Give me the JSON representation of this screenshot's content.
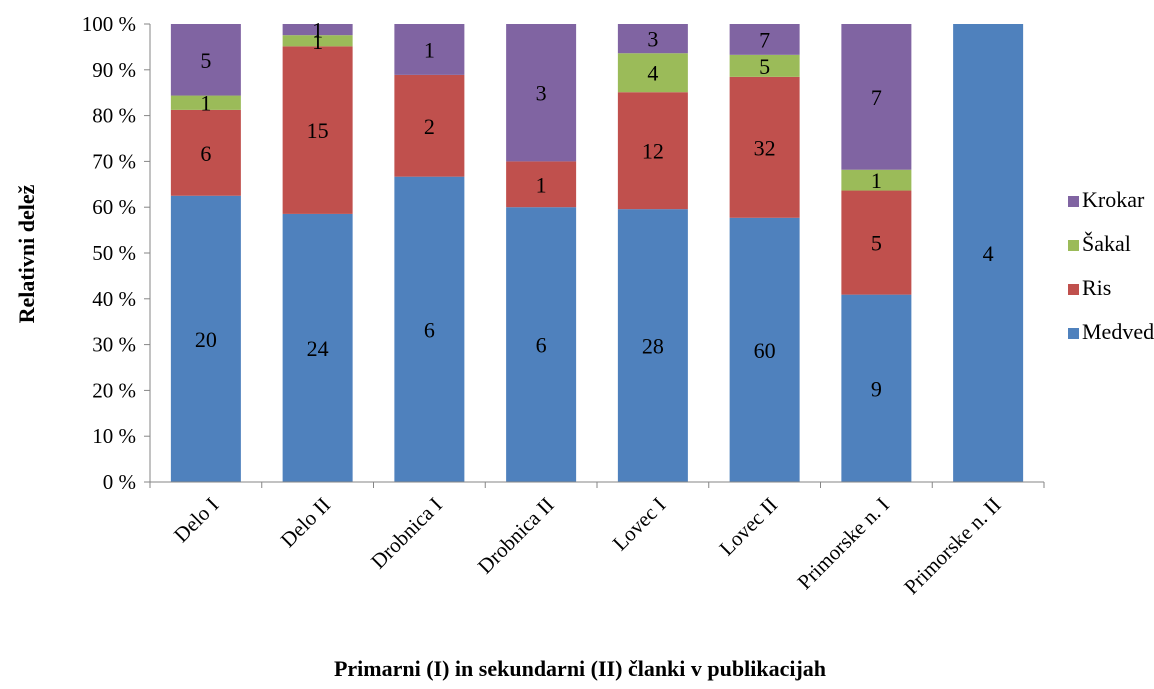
{
  "chart_data": {
    "type": "bar",
    "stacked": true,
    "normalized": true,
    "title": "",
    "xlabel": "Primarni (I) in sekundarni (II) članki v publikacijah",
    "ylabel": "Relativni delež",
    "ylim": [
      0,
      100
    ],
    "yticks": [
      "0 %",
      "10 %",
      "20 %",
      "30 %",
      "40 %",
      "50 %",
      "60 %",
      "70 %",
      "80 %",
      "90 %",
      "100 %"
    ],
    "categories": [
      "Delo I",
      "Delo II",
      "Drobnica I",
      "Drobnica II",
      "Lovec I",
      "Lovec II",
      "Primorske n. I",
      "Primorske n. II"
    ],
    "series": [
      {
        "name": "Medved",
        "color": "#4f81bd",
        "values": [
          20,
          24,
          6,
          6,
          28,
          60,
          9,
          4
        ]
      },
      {
        "name": "Ris",
        "color": "#c0504d",
        "values": [
          6,
          15,
          2,
          1,
          12,
          32,
          5,
          0
        ]
      },
      {
        "name": "Šakal",
        "color": "#9bbb59",
        "values": [
          1,
          1,
          0,
          0,
          4,
          5,
          1,
          0
        ]
      },
      {
        "name": "Krokar",
        "color": "#8064a2",
        "values": [
          5,
          1,
          1,
          3,
          3,
          7,
          7,
          0
        ]
      }
    ],
    "legend_order": [
      "Krokar",
      "Šakal",
      "Ris",
      "Medved"
    ],
    "legend_position": "right",
    "grid": false
  }
}
